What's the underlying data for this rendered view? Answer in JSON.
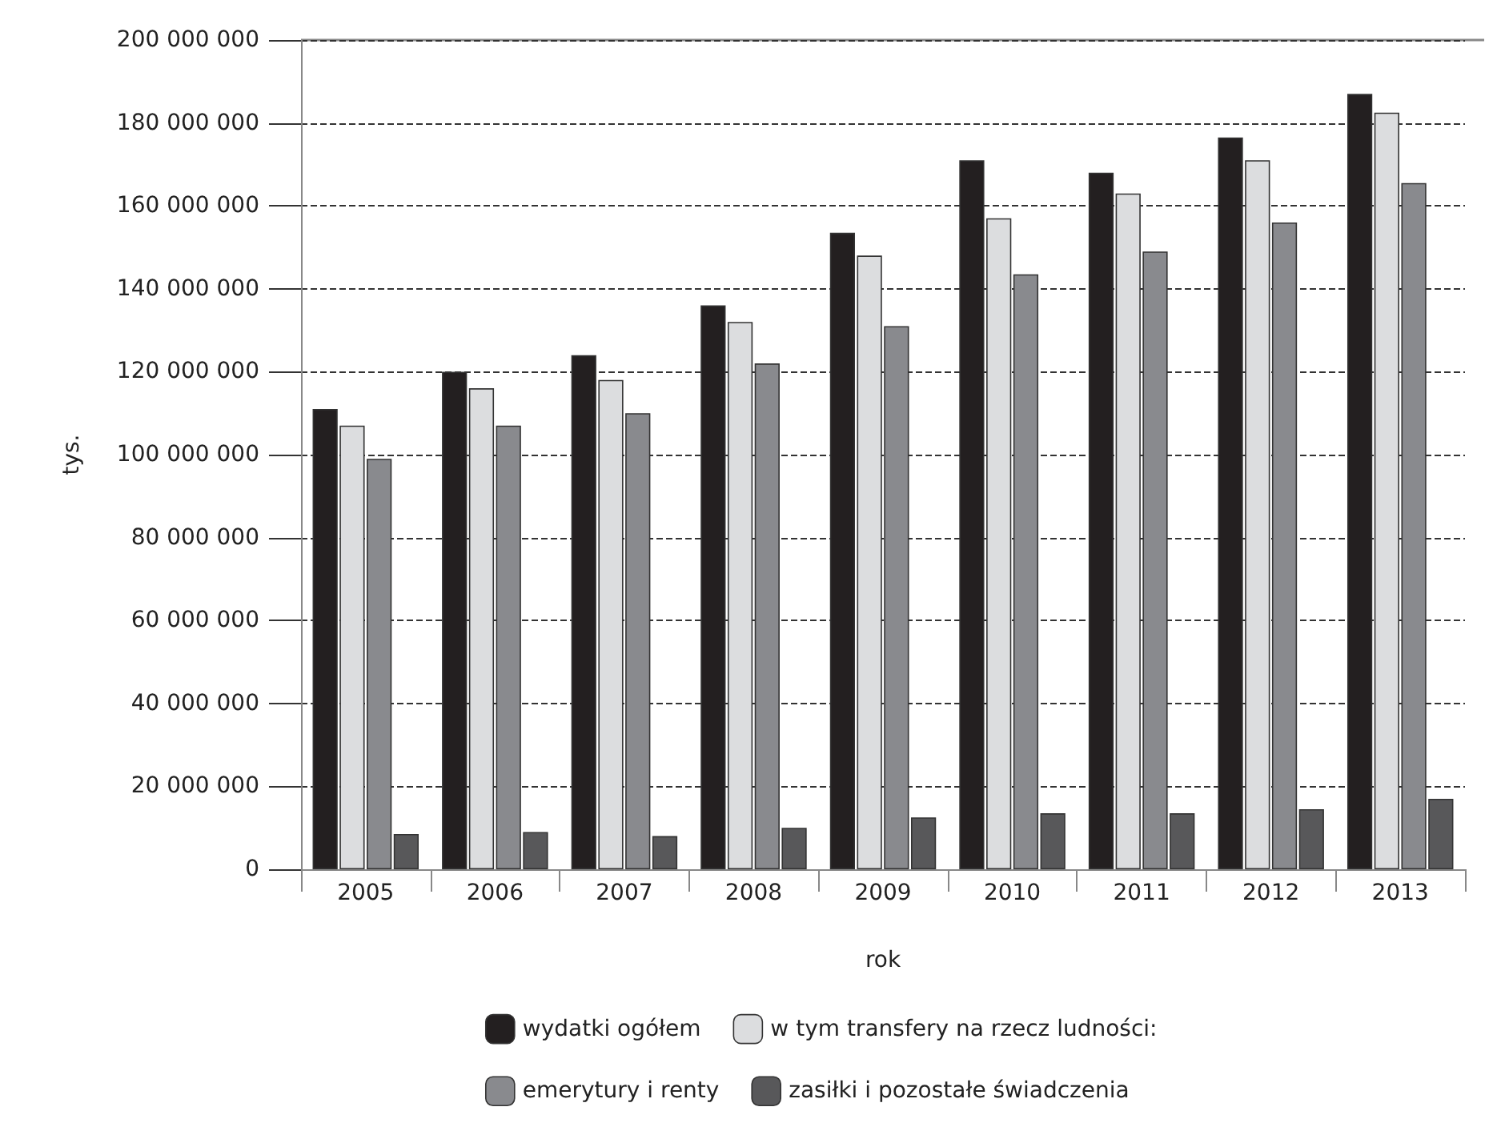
{
  "chart_data": {
    "type": "bar",
    "xlabel": "rok",
    "ylabel": "tys.",
    "categories": [
      "2005",
      "2006",
      "2007",
      "2008",
      "2009",
      "2010",
      "2011",
      "2012",
      "2013"
    ],
    "series": [
      {
        "name": "wydatki ogółem",
        "color": "#231f20",
        "values": [
          111000000,
          120000000,
          124000000,
          136000000,
          153500000,
          171000000,
          168000000,
          176500000,
          187000000
        ]
      },
      {
        "name": "w tym transfery na rzecz ludności:",
        "color": "#dcdddf",
        "values": [
          107000000,
          116000000,
          118000000,
          132000000,
          148000000,
          157000000,
          163000000,
          171000000,
          182500000
        ]
      },
      {
        "name": "emerytury i renty",
        "color": "#898a8e",
        "values": [
          99000000,
          107000000,
          110000000,
          122000000,
          131000000,
          143500000,
          149000000,
          156000000,
          165500000
        ]
      },
      {
        "name": "zasiłki i pozostałe świadczenia",
        "color": "#58585a",
        "values": [
          8500000,
          9000000,
          8000000,
          10000000,
          12500000,
          13500000,
          13500000,
          14500000,
          17000000
        ]
      }
    ],
    "ylim": [
      0,
      200000000
    ],
    "yticks": [
      {
        "value": 0,
        "label": "0"
      },
      {
        "value": 20000000,
        "label": "20 000 000"
      },
      {
        "value": 40000000,
        "label": "40 000 000"
      },
      {
        "value": 60000000,
        "label": "60 000 000"
      },
      {
        "value": 80000000,
        "label": "80 000 000"
      },
      {
        "value": 100000000,
        "label": "100 000 000"
      },
      {
        "value": 120000000,
        "label": "120 000 000"
      },
      {
        "value": 140000000,
        "label": "140 000 000"
      },
      {
        "value": 160000000,
        "label": "160 000 000"
      },
      {
        "value": 180000000,
        "label": "180 000 000"
      },
      {
        "value": 200000000,
        "label": "200 000 000"
      }
    ],
    "grid": "y",
    "legend": "bottom"
  }
}
